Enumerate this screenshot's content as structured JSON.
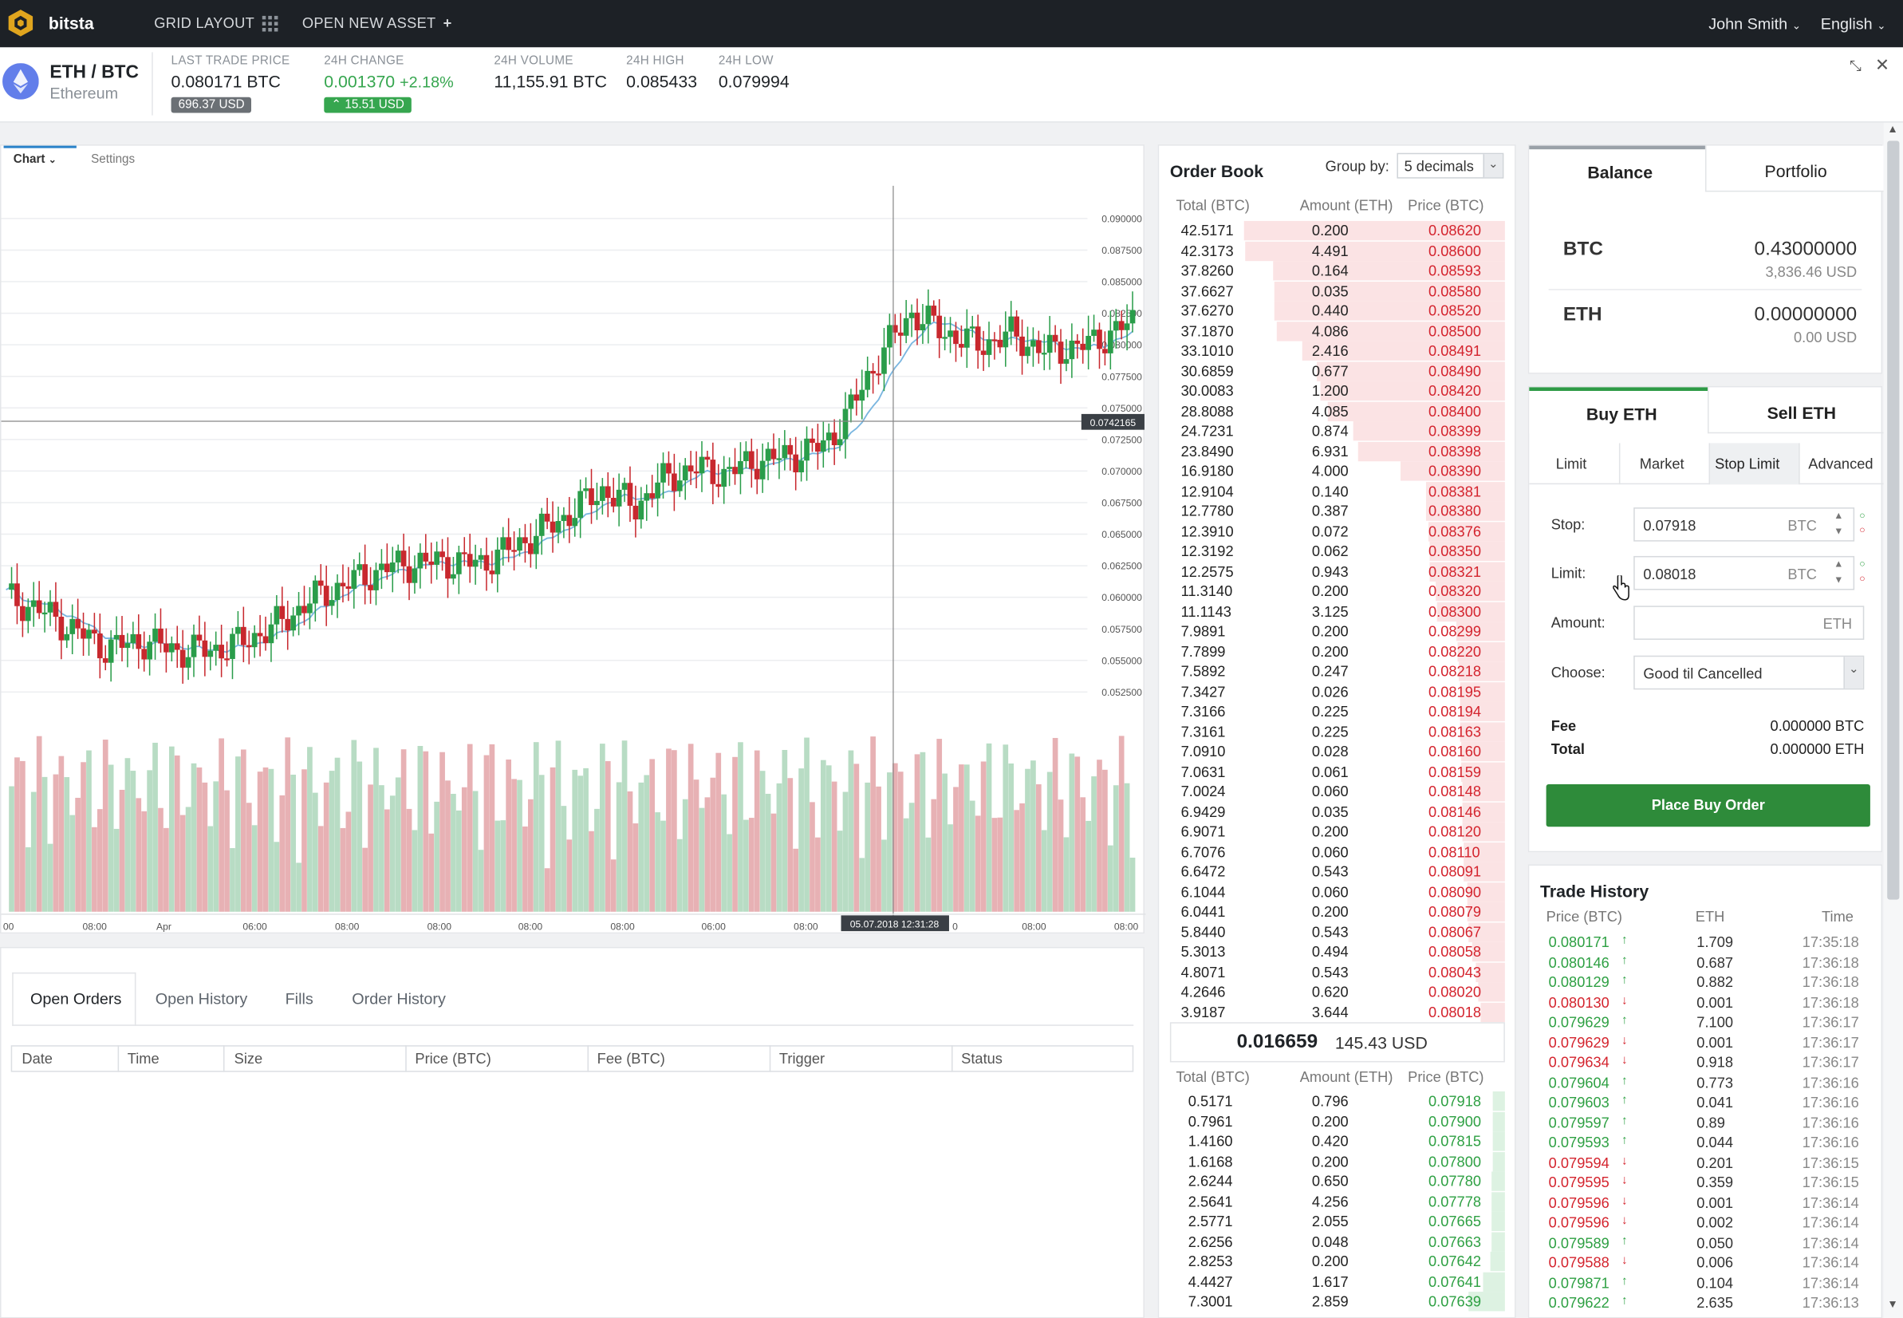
{
  "topbar": {
    "brand": "bitsta",
    "grid_layout": "GRID LAYOUT",
    "open_new_asset": "OPEN NEW ASSET",
    "user": "John Smith",
    "language": "English"
  },
  "ticker": {
    "pair": "ETH / BTC",
    "name": "Ethereum",
    "last_trade_label": "LAST TRADE PRICE",
    "last_trade": "0.080171 BTC",
    "last_trade_usd": "696.37 USD",
    "change_label": "24H CHANGE",
    "change": "0.001370",
    "change_pct": "+2.18%",
    "change_usd": "15.51 USD",
    "volume_label": "24H VOLUME",
    "volume": "11,155.91 BTC",
    "high_label": "24H HIGH",
    "high": "0.085433",
    "low_label": "24H LOW",
    "low": "0.079994"
  },
  "chart_panel": {
    "tab_chart": "Chart",
    "tab_settings": "Settings",
    "price_labels": [
      "0.090000",
      "0.087500",
      "0.085000",
      "0.082500",
      "0.080000",
      "0.077500",
      "0.075000",
      "0.072500",
      "0.070000",
      "0.067500",
      "0.065000",
      "0.062500",
      "0.060000",
      "0.057500",
      "0.055000",
      "0.052500"
    ],
    "crosshair_price": "0.0742165",
    "crosshair_time": "05.07.2018 12:31:28",
    "time_labels": [
      "00",
      "08:00",
      "Apr",
      "06:00",
      "08:00",
      "08:00",
      "08:00",
      "08:00",
      "06:00",
      "08:00",
      "0",
      "08:00",
      "08:00"
    ],
    "colors": {
      "up": "#2a9d4a",
      "down": "#c8282e",
      "vol_up": "#b8dcc4",
      "vol_down": "#e7b1b4",
      "ma": "#7ab6e0"
    }
  },
  "orders_panel": {
    "tabs": [
      "Open Orders",
      "Open History",
      "Fills",
      "Order History"
    ],
    "columns": [
      "Date",
      "Time",
      "Size",
      "Price (BTC)",
      "Fee (BTC)",
      "Trigger",
      "Status"
    ]
  },
  "orderbook": {
    "title": "Order Book",
    "group_by_label": "Group by:",
    "group_by_value": "5 decimals",
    "headers": [
      "Total (BTC)",
      "Amount (ETH)",
      "Price (BTC)"
    ],
    "asks": [
      [
        "42.5171",
        "0.200",
        "0.08620"
      ],
      [
        "42.3173",
        "4.491",
        "0.08600"
      ],
      [
        "37.8260",
        "0.164",
        "0.08593"
      ],
      [
        "37.6627",
        "0.035",
        "0.08580"
      ],
      [
        "37.6270",
        "0.440",
        "0.08520"
      ],
      [
        "37.1870",
        "4.086",
        "0.08500"
      ],
      [
        "33.1010",
        "2.416",
        "0.08491"
      ],
      [
        "30.6859",
        "0.677",
        "0.08490"
      ],
      [
        "30.0083",
        "1.200",
        "0.08420"
      ],
      [
        "28.8088",
        "4.085",
        "0.08400"
      ],
      [
        "24.7231",
        "0.874",
        "0.08399"
      ],
      [
        "23.8490",
        "6.931",
        "0.08398"
      ],
      [
        "16.9180",
        "4.000",
        "0.08390"
      ],
      [
        "12.9104",
        "0.140",
        "0.08381"
      ],
      [
        "12.7780",
        "0.387",
        "0.08380"
      ],
      [
        "12.3910",
        "0.072",
        "0.08376"
      ],
      [
        "12.3192",
        "0.062",
        "0.08350"
      ],
      [
        "12.2575",
        "0.943",
        "0.08321"
      ],
      [
        "11.3140",
        "0.200",
        "0.08320"
      ],
      [
        "11.1143",
        "3.125",
        "0.08300"
      ],
      [
        "7.9891",
        "0.200",
        "0.08299"
      ],
      [
        "7.7899",
        "0.200",
        "0.08220"
      ],
      [
        "7.5892",
        "0.247",
        "0.08218"
      ],
      [
        "7.3427",
        "0.026",
        "0.08195"
      ],
      [
        "7.3166",
        "0.225",
        "0.08194"
      ],
      [
        "7.3161",
        "0.225",
        "0.08163"
      ],
      [
        "7.0910",
        "0.028",
        "0.08160"
      ],
      [
        "7.0631",
        "0.061",
        "0.08159"
      ],
      [
        "7.0024",
        "0.060",
        "0.08148"
      ],
      [
        "6.9429",
        "0.035",
        "0.08146"
      ],
      [
        "6.9071",
        "0.200",
        "0.08120"
      ],
      [
        "6.7076",
        "0.060",
        "0.08110"
      ],
      [
        "6.6472",
        "0.543",
        "0.08091"
      ],
      [
        "6.1044",
        "0.060",
        "0.08090"
      ],
      [
        "6.0441",
        "0.200",
        "0.08079"
      ],
      [
        "5.8440",
        "0.543",
        "0.08067"
      ],
      [
        "5.3013",
        "0.494",
        "0.08058"
      ],
      [
        "4.8071",
        "0.543",
        "0.08043"
      ],
      [
        "4.2646",
        "0.620",
        "0.08020"
      ],
      [
        "3.9187",
        "3.644",
        "0.08018"
      ]
    ],
    "spread_price": "0.016659",
    "spread_usd": "145.43 USD",
    "bids": [
      [
        "0.5171",
        "0.796",
        "0.07918"
      ],
      [
        "0.7961",
        "0.200",
        "0.07900"
      ],
      [
        "1.4160",
        "0.420",
        "0.07815"
      ],
      [
        "1.6168",
        "0.200",
        "0.07800"
      ],
      [
        "2.6244",
        "0.650",
        "0.07780"
      ],
      [
        "2.5641",
        "4.256",
        "0.07778"
      ],
      [
        "2.5771",
        "2.055",
        "0.07665"
      ],
      [
        "2.6256",
        "0.048",
        "0.07663"
      ],
      [
        "2.8253",
        "0.200",
        "0.07642"
      ],
      [
        "4.4427",
        "1.617",
        "0.07641"
      ],
      [
        "7.3001",
        "2.859",
        "0.07639"
      ]
    ]
  },
  "balance": {
    "tab_balance": "Balance",
    "tab_portfolio": "Portfolio",
    "rows": [
      {
        "asset": "BTC",
        "amount": "0.43000000",
        "usd": "3,836.46 USD"
      },
      {
        "asset": "ETH",
        "amount": "0.00000000",
        "usd": "0.00 USD"
      }
    ]
  },
  "order_form": {
    "tab_buy": "Buy ETH",
    "tab_sell": "Sell ETH",
    "types": [
      "Limit",
      "Market",
      "Stop Limit",
      "Advanced"
    ],
    "stop_label": "Stop:",
    "stop_value": "0.07918",
    "stop_unit": "BTC",
    "limit_label": "Limit:",
    "limit_value": "0.08018",
    "limit_unit": "BTC",
    "amount_label": "Amount:",
    "amount_unit": "ETH",
    "choose_label": "Choose:",
    "choose_value": "Good til Cancelled",
    "fee_label": "Fee",
    "fee_value": "0.000000 BTC",
    "total_label": "Total",
    "total_value": "0.000000 ETH",
    "place_button": "Place Buy Order"
  },
  "trade_history": {
    "title": "Trade History",
    "headers": [
      "Price (BTC)",
      "ETH",
      "Time"
    ],
    "rows": [
      {
        "price": "0.080171",
        "dir": "up",
        "amount": "1.709",
        "time": "17:35:18"
      },
      {
        "price": "0.080146",
        "dir": "up",
        "amount": "0.687",
        "time": "17:36:18"
      },
      {
        "price": "0.080129",
        "dir": "up",
        "amount": "0.882",
        "time": "17:36:18"
      },
      {
        "price": "0.080130",
        "dir": "down",
        "amount": "0.001",
        "time": "17:36:18"
      },
      {
        "price": "0.079629",
        "dir": "up",
        "amount": "7.100",
        "time": "17:36:17"
      },
      {
        "price": "0.079629",
        "dir": "down",
        "amount": "0.001",
        "time": "17:36:17"
      },
      {
        "price": "0.079634",
        "dir": "down",
        "amount": "0.918",
        "time": "17:36:17"
      },
      {
        "price": "0.079604",
        "dir": "up",
        "amount": "0.773",
        "time": "17:36:16"
      },
      {
        "price": "0.079603",
        "dir": "up",
        "amount": "0.041",
        "time": "17:36:16"
      },
      {
        "price": "0.079597",
        "dir": "up",
        "amount": "0.89",
        "time": "17:36:16"
      },
      {
        "price": "0.079593",
        "dir": "up",
        "amount": "0.044",
        "time": "17:36:16"
      },
      {
        "price": "0.079594",
        "dir": "down",
        "amount": "0.201",
        "time": "17:36:15"
      },
      {
        "price": "0.079595",
        "dir": "down",
        "amount": "0.359",
        "time": "17:36:15"
      },
      {
        "price": "0.079596",
        "dir": "down",
        "amount": "0.001",
        "time": "17:36:14"
      },
      {
        "price": "0.079596",
        "dir": "down",
        "amount": "0.002",
        "time": "17:36:14"
      },
      {
        "price": "0.079589",
        "dir": "up",
        "amount": "0.050",
        "time": "17:36:14"
      },
      {
        "price": "0.079588",
        "dir": "down",
        "amount": "0.006",
        "time": "17:36:14"
      },
      {
        "price": "0.079871",
        "dir": "up",
        "amount": "0.104",
        "time": "17:36:14"
      },
      {
        "price": "0.079622",
        "dir": "up",
        "amount": "2.635",
        "time": "17:36:13"
      }
    ]
  }
}
